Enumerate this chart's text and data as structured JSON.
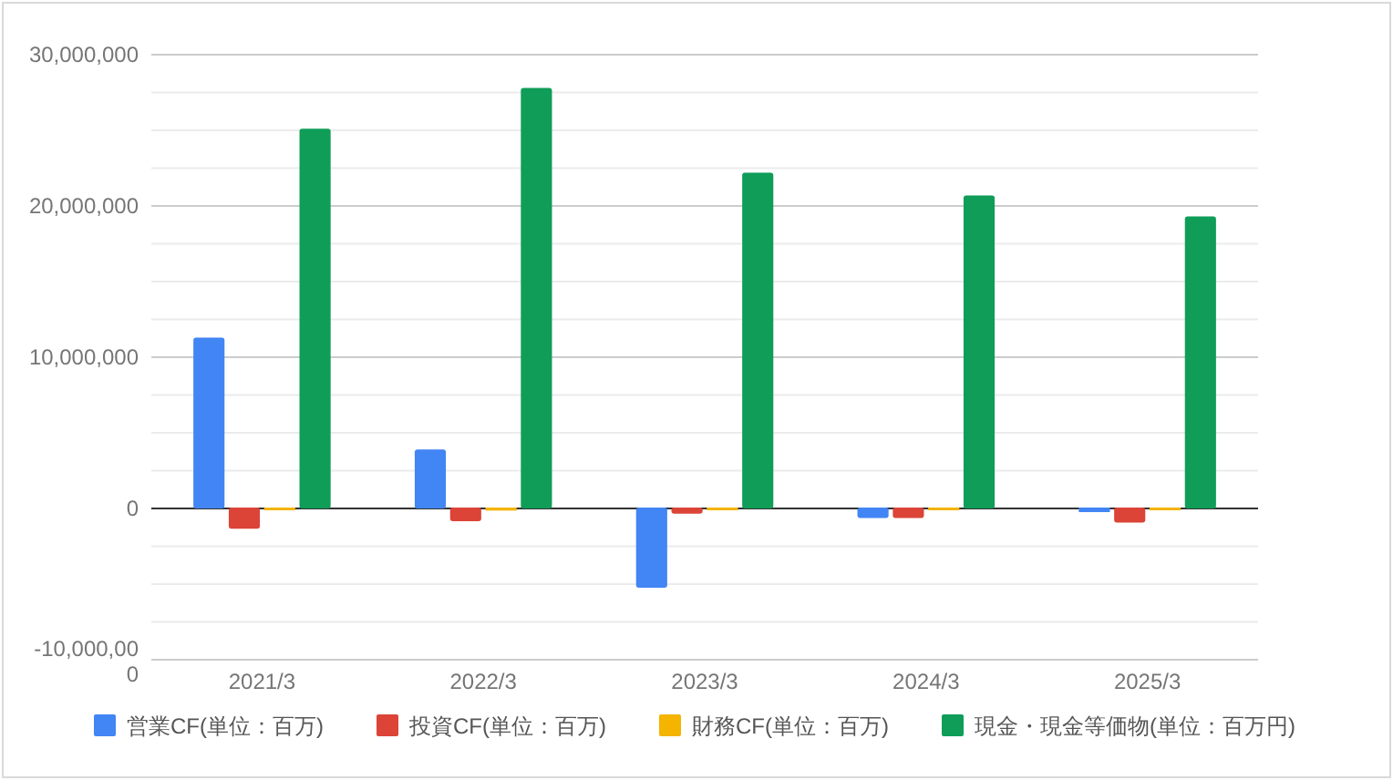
{
  "chart_data": {
    "type": "bar",
    "categories": [
      "2021/3",
      "2022/3",
      "2023/3",
      "2024/3",
      "2025/3"
    ],
    "series": [
      {
        "name": "営業CF(単位：百万)",
        "color": "#4285f4",
        "values": [
          11300000,
          3900000,
          -5300000,
          -700000,
          -300000
        ]
      },
      {
        "name": "投資CF(単位：百万)",
        "color": "#db4437",
        "values": [
          -1400000,
          -900000,
          -400000,
          -700000,
          -1000000
        ]
      },
      {
        "name": "財務CF(単位：百万)",
        "color": "#f4b400",
        "values": [
          0,
          -200000,
          0,
          0,
          0
        ]
      },
      {
        "name": "現金・現金等価物(単位：百万円)",
        "color": "#0f9d58",
        "values": [
          25100000,
          27800000,
          22200000,
          20700000,
          19300000
        ]
      }
    ],
    "ylim": [
      -10000000,
      30000000
    ],
    "yticks": [
      {
        "value": -10000000,
        "label": "-10,000,000"
      },
      {
        "value": -7500000,
        "label": null
      },
      {
        "value": -5000000,
        "label": null
      },
      {
        "value": -2500000,
        "label": null
      },
      0,
      {
        "value": 2500000,
        "label": null
      },
      {
        "value": 5000000,
        "label": null
      },
      {
        "value": 7500000,
        "label": null
      },
      {
        "value": 10000000,
        "label": "10,000,000"
      },
      {
        "value": 12500000,
        "label": null
      },
      {
        "value": 15000000,
        "label": null
      },
      {
        "value": 17500000,
        "label": null
      },
      {
        "value": 20000000,
        "label": "20,000,000"
      },
      {
        "value": 22500000,
        "label": null
      },
      {
        "value": 25000000,
        "label": null
      },
      {
        "value": 27500000,
        "label": null
      },
      {
        "value": 30000000,
        "label": "30,000,000"
      }
    ],
    "grid": true,
    "legend": "bottom"
  }
}
